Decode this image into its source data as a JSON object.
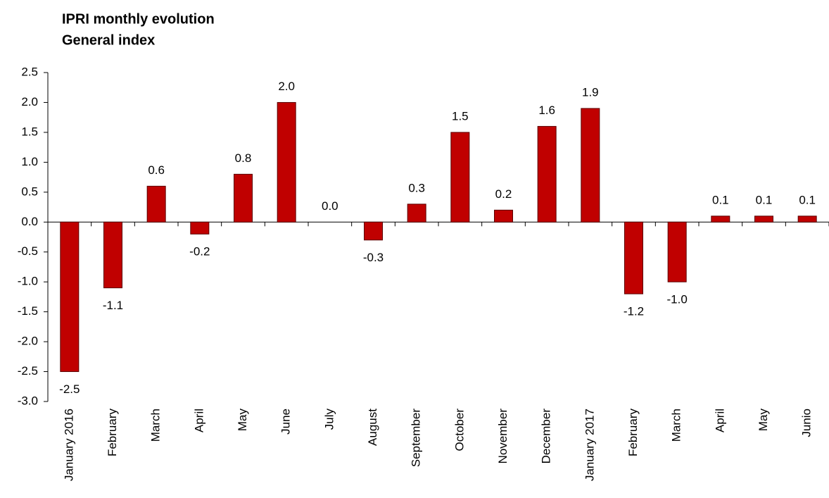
{
  "chart_data": {
    "type": "bar",
    "title": "IPRI monthly evolution",
    "subtitle": "General index",
    "categories": [
      "January 2016",
      "February",
      "March",
      "April",
      "May",
      "June",
      "July",
      "August",
      "September",
      "October",
      "November",
      "December",
      "January 2017",
      "February",
      "March",
      "April",
      "May",
      "Junio"
    ],
    "values": [
      -2.5,
      -1.1,
      0.6,
      -0.2,
      0.8,
      2.0,
      0.0,
      -0.3,
      0.3,
      1.5,
      0.2,
      1.6,
      1.9,
      -1.2,
      -1.0,
      0.1,
      0.1,
      0.1
    ],
    "value_labels": [
      "-2.5",
      "-1.1",
      "0.6",
      "-0.2",
      "0.8",
      "2.0",
      "0.0",
      "-0.3",
      "0.3",
      "1.5",
      "0.2",
      "1.6",
      "1.9",
      "-1.2",
      "-1.0",
      "0.1",
      "0.1",
      "0.1"
    ],
    "color": "#c00000",
    "ylim": [
      -3.0,
      2.5
    ],
    "yticks": [
      {
        "value": -3,
        "label": "-3.0"
      },
      -2.5,
      {
        "value": -2,
        "label": "-2.0"
      },
      -1.5,
      {
        "value": -1,
        "label": "-1.0"
      },
      -0.5,
      {
        "value": 0,
        "label": "0.0"
      },
      0.5,
      {
        "value": 1,
        "label": "1.0"
      },
      1.5,
      {
        "value": 2,
        "label": "2.0"
      },
      2.5
    ],
    "grid": false
  }
}
